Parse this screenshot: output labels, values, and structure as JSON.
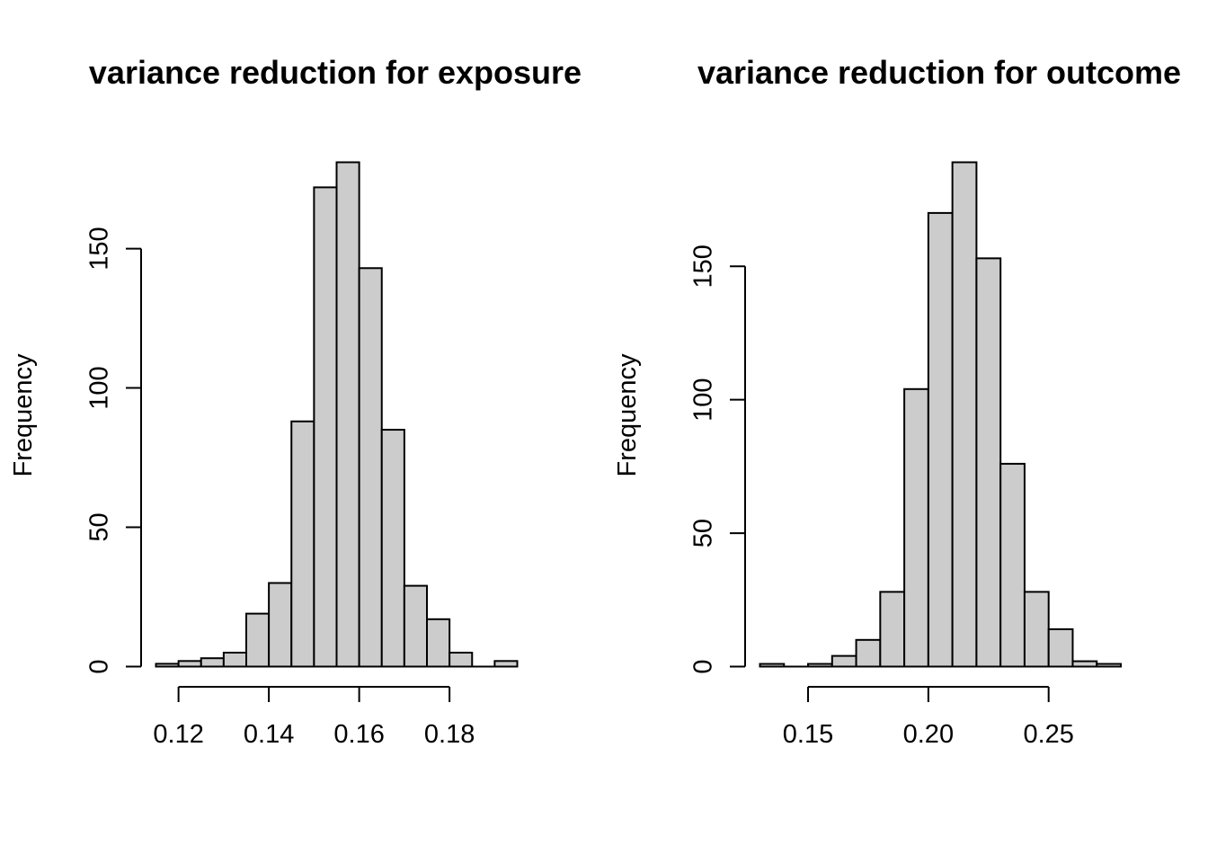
{
  "chart_data": [
    {
      "type": "bar",
      "title": "variance reduction for exposure",
      "xlabel": "",
      "ylabel": "Frequency",
      "bin_width": 0.005,
      "bins": [
        {
          "x0": 0.115,
          "x1": 0.12,
          "count": 1
        },
        {
          "x0": 0.12,
          "x1": 0.125,
          "count": 2
        },
        {
          "x0": 0.125,
          "x1": 0.13,
          "count": 3
        },
        {
          "x0": 0.13,
          "x1": 0.135,
          "count": 5
        },
        {
          "x0": 0.135,
          "x1": 0.14,
          "count": 19
        },
        {
          "x0": 0.14,
          "x1": 0.145,
          "count": 30
        },
        {
          "x0": 0.145,
          "x1": 0.15,
          "count": 88
        },
        {
          "x0": 0.15,
          "x1": 0.155,
          "count": 172
        },
        {
          "x0": 0.155,
          "x1": 0.16,
          "count": 181
        },
        {
          "x0": 0.16,
          "x1": 0.165,
          "count": 143
        },
        {
          "x0": 0.165,
          "x1": 0.17,
          "count": 85
        },
        {
          "x0": 0.17,
          "x1": 0.175,
          "count": 29
        },
        {
          "x0": 0.175,
          "x1": 0.18,
          "count": 17
        },
        {
          "x0": 0.18,
          "x1": 0.185,
          "count": 5
        },
        {
          "x0": 0.185,
          "x1": 0.19,
          "count": 0
        },
        {
          "x0": 0.19,
          "x1": 0.195,
          "count": 2
        }
      ],
      "xlim": [
        0.115,
        0.195
      ],
      "ylim": [
        0,
        181
      ],
      "xticks": [
        0.12,
        0.14,
        0.16,
        0.18
      ],
      "xtick_labels": [
        "0.12",
        "0.14",
        "0.16",
        "0.18"
      ],
      "yticks": [
        0,
        50,
        100,
        150
      ],
      "ytick_labels": [
        "0",
        "50",
        "100",
        "150"
      ],
      "bar_fill": "#cccccc",
      "bar_stroke": "#000000",
      "grid": false
    },
    {
      "type": "bar",
      "title": "variance reduction for outcome",
      "xlabel": "",
      "ylabel": "Frequency",
      "bin_width": 0.01,
      "bins": [
        {
          "x0": 0.13,
          "x1": 0.14,
          "count": 1
        },
        {
          "x0": 0.14,
          "x1": 0.15,
          "count": 0
        },
        {
          "x0": 0.15,
          "x1": 0.16,
          "count": 1
        },
        {
          "x0": 0.16,
          "x1": 0.17,
          "count": 4
        },
        {
          "x0": 0.17,
          "x1": 0.18,
          "count": 10
        },
        {
          "x0": 0.18,
          "x1": 0.19,
          "count": 28
        },
        {
          "x0": 0.19,
          "x1": 0.2,
          "count": 104
        },
        {
          "x0": 0.2,
          "x1": 0.21,
          "count": 170
        },
        {
          "x0": 0.21,
          "x1": 0.22,
          "count": 189
        },
        {
          "x0": 0.22,
          "x1": 0.23,
          "count": 153
        },
        {
          "x0": 0.23,
          "x1": 0.24,
          "count": 76
        },
        {
          "x0": 0.24,
          "x1": 0.25,
          "count": 28
        },
        {
          "x0": 0.25,
          "x1": 0.26,
          "count": 14
        },
        {
          "x0": 0.26,
          "x1": 0.27,
          "count": 2
        },
        {
          "x0": 0.27,
          "x1": 0.28,
          "count": 1
        }
      ],
      "xlim": [
        0.13,
        0.28
      ],
      "ylim": [
        0,
        189
      ],
      "xticks": [
        0.15,
        0.2,
        0.25
      ],
      "xtick_labels": [
        "0.15",
        "0.20",
        "0.25"
      ],
      "yticks": [
        0,
        50,
        100,
        150
      ],
      "ytick_labels": [
        "0",
        "50",
        "100",
        "150"
      ],
      "bar_fill": "#cccccc",
      "bar_stroke": "#000000",
      "grid": false
    }
  ]
}
